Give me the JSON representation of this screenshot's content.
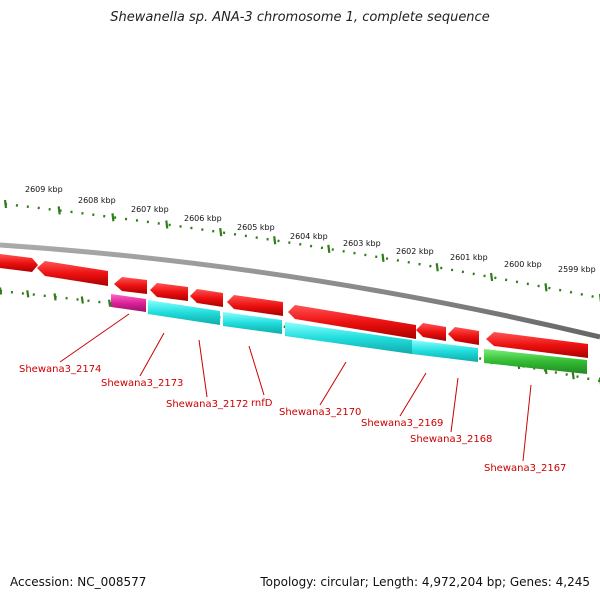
{
  "title": "Shewanella sp. ANA-3 chromosome 1, complete sequence",
  "footer": {
    "accession": "Accession: NC_008577",
    "summary": "Topology: circular; Length: 4,972,204 bp; Genes: 4,245"
  },
  "colors": {
    "backbone": "#888888",
    "tick": "#2e7d1a",
    "label": "#cc0000",
    "forward_gene": "#ee1111",
    "cyan_gene": "#22dddd",
    "magenta_gene": "#dd2299",
    "green_gene": "#33bb33"
  },
  "kbp_ticks": [
    "2609 kbp",
    "2608 kbp",
    "2607 kbp",
    "2606 kbp",
    "2605 kbp",
    "2604 kbp",
    "2603 kbp",
    "2602 kbp",
    "2601 kbp",
    "2600 kbp",
    "2599 kbp"
  ],
  "gene_labels": [
    "Shewana3_2174",
    "Shewana3_2173",
    "Shewana3_2172",
    "rnfD",
    "Shewana3_2170",
    "Shewana3_2169",
    "Shewana3_2168",
    "Shewana3_2167"
  ]
}
